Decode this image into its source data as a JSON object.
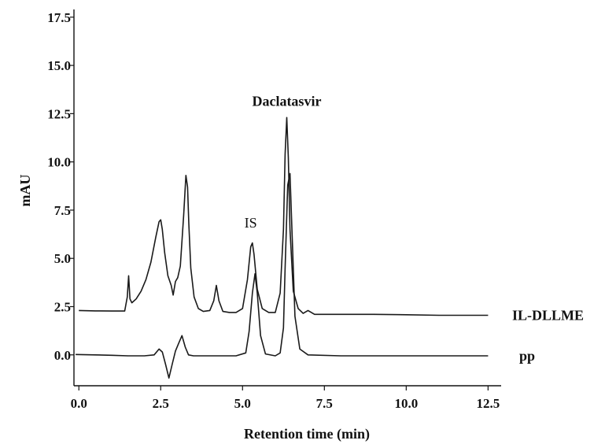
{
  "chart_data": {
    "type": "line",
    "xlabel": "Retention time (min)",
    "ylabel": "mAU",
    "xlim": [
      -0.15,
      12.9
    ],
    "ylim": [
      -1.6,
      17.9
    ],
    "xticks": [
      0.0,
      2.5,
      5.0,
      7.5,
      10.0,
      12.5
    ],
    "xtick_labels": [
      "0.0",
      "2.5",
      "5.0",
      "7.5",
      "10.0",
      "12.5"
    ],
    "yticks": [
      0.0,
      2.5,
      5.0,
      7.5,
      10.0,
      12.5,
      15.0,
      17.5
    ],
    "ytick_labels": [
      "0.0",
      "2.5",
      "5.0",
      "7.5",
      "10.0",
      "12.5",
      "15.0",
      "17.5"
    ],
    "annotations": [
      {
        "text": "Daclatasvir",
        "x": 6.35,
        "y": 12.9,
        "bold": true
      },
      {
        "text": "IS",
        "x": 5.25,
        "y": 6.6,
        "bold": false
      }
    ],
    "series": [
      {
        "name": "IL-DLLME",
        "color": "#1a1a1a",
        "x": [
          0.0,
          0.5,
          1.0,
          1.4,
          1.48,
          1.52,
          1.56,
          1.62,
          1.75,
          1.9,
          2.05,
          2.2,
          2.35,
          2.45,
          2.5,
          2.55,
          2.62,
          2.72,
          2.82,
          2.88,
          2.95,
          3.02,
          3.1,
          3.2,
          3.27,
          3.32,
          3.36,
          3.42,
          3.52,
          3.65,
          3.8,
          4.0,
          4.12,
          4.2,
          4.28,
          4.4,
          4.6,
          4.8,
          5.0,
          5.15,
          5.25,
          5.3,
          5.35,
          5.45,
          5.6,
          5.8,
          6.0,
          6.15,
          6.25,
          6.3,
          6.35,
          6.4,
          6.45,
          6.55,
          6.7,
          6.85,
          7.0,
          7.2,
          8.0,
          9.0,
          10.0,
          11.0,
          12.0,
          12.5
        ],
        "y": [
          2.3,
          2.28,
          2.27,
          2.27,
          3.0,
          4.1,
          2.9,
          2.7,
          2.9,
          3.3,
          3.9,
          4.8,
          6.1,
          6.9,
          7.0,
          6.5,
          5.3,
          4.1,
          3.6,
          3.1,
          3.8,
          4.0,
          4.6,
          7.2,
          9.3,
          8.7,
          6.8,
          4.5,
          3.0,
          2.4,
          2.25,
          2.3,
          2.8,
          3.6,
          2.8,
          2.25,
          2.2,
          2.2,
          2.4,
          3.9,
          5.6,
          5.8,
          5.2,
          3.4,
          2.4,
          2.2,
          2.2,
          3.2,
          6.5,
          10.4,
          12.3,
          10.2,
          6.5,
          3.3,
          2.4,
          2.15,
          2.3,
          2.1,
          2.1,
          2.1,
          2.08,
          2.05,
          2.05,
          2.05
        ]
      },
      {
        "name": "pp",
        "color": "#1a1a1a",
        "x": [
          -0.1,
          0.5,
          1.0,
          1.5,
          2.0,
          2.3,
          2.45,
          2.55,
          2.65,
          2.75,
          2.85,
          2.95,
          3.05,
          3.15,
          3.25,
          3.35,
          3.5,
          3.8,
          4.2,
          4.8,
          5.1,
          5.2,
          5.3,
          5.38,
          5.45,
          5.55,
          5.7,
          6.0,
          6.15,
          6.25,
          6.3,
          6.38,
          6.45,
          6.52,
          6.6,
          6.75,
          7.0,
          8.0,
          9.0,
          10.0,
          11.0,
          12.0,
          12.5
        ],
        "y": [
          0.02,
          0.0,
          -0.02,
          -0.05,
          -0.05,
          0.0,
          0.3,
          0.15,
          -0.5,
          -1.2,
          -0.5,
          0.2,
          0.6,
          1.0,
          0.4,
          0.0,
          -0.05,
          -0.05,
          -0.05,
          -0.05,
          0.1,
          1.2,
          3.2,
          4.2,
          3.2,
          1.0,
          0.05,
          -0.05,
          0.1,
          1.4,
          4.5,
          8.8,
          9.4,
          6.0,
          2.0,
          0.3,
          0.0,
          -0.05,
          -0.05,
          -0.05,
          -0.05,
          -0.05,
          -0.05
        ]
      }
    ],
    "grid": false,
    "legend": "none; series labels printed at right end of each trace"
  }
}
